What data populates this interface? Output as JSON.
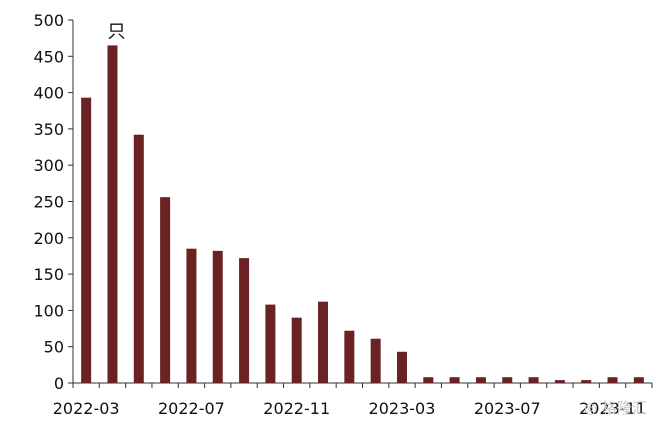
{
  "chart_data": {
    "type": "bar",
    "unit_label": "只",
    "categories": [
      "2022-03",
      "2022-04",
      "2022-05",
      "2022-06",
      "2022-07",
      "2022-08",
      "2022-09",
      "2022-10",
      "2022-11",
      "2022-12",
      "2023-01",
      "2023-02",
      "2023-03",
      "2023-04",
      "2023-05",
      "2023-06",
      "2023-07",
      "2023-08",
      "2023-09",
      "2023-10",
      "2023-11",
      "2023-12"
    ],
    "values": [
      393,
      465,
      342,
      256,
      185,
      182,
      172,
      108,
      90,
      112,
      72,
      61,
      43,
      8,
      8,
      8,
      8,
      8,
      4,
      4,
      8,
      8
    ],
    "x_tick_labels": [
      "2022-03",
      "2022-07",
      "2022-11",
      "2023-03",
      "2023-07",
      "2023-11"
    ],
    "y_ticks": [
      0,
      50,
      100,
      150,
      200,
      250,
      300,
      350,
      400,
      450,
      500
    ],
    "ylim": [
      0,
      500
    ],
    "bar_color": "#6b2224",
    "grid": false,
    "legend": "none"
  }
}
